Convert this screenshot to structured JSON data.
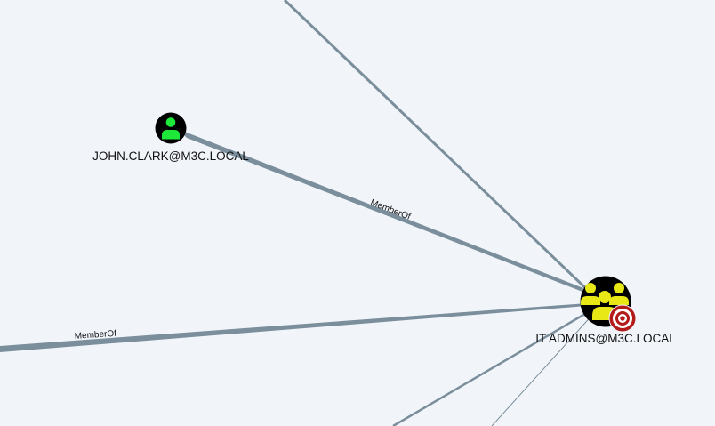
{
  "graph": {
    "background_color": "#f1f5fa",
    "edge_color": "#7b8e9b",
    "nodes": [
      {
        "id": "user-john-clark",
        "label": "JOHN.CLARK@M3C.LOCAL",
        "type": "user",
        "icon": "user-icon",
        "icon_color": "#1ee83a"
      },
      {
        "id": "group-it-admins",
        "label": "IT ADMINS@M3C.LOCAL",
        "type": "group",
        "icon": "group-icon",
        "icon_color": "#e8e817",
        "badge": "target-icon",
        "badge_color": "#b31b1b"
      }
    ],
    "edges": [
      {
        "label": "MemberOf",
        "from": "user-john-clark",
        "to": "group-it-admins"
      },
      {
        "label": "MemberOf",
        "from": "offscreen-left",
        "to": "group-it-admins"
      }
    ]
  }
}
